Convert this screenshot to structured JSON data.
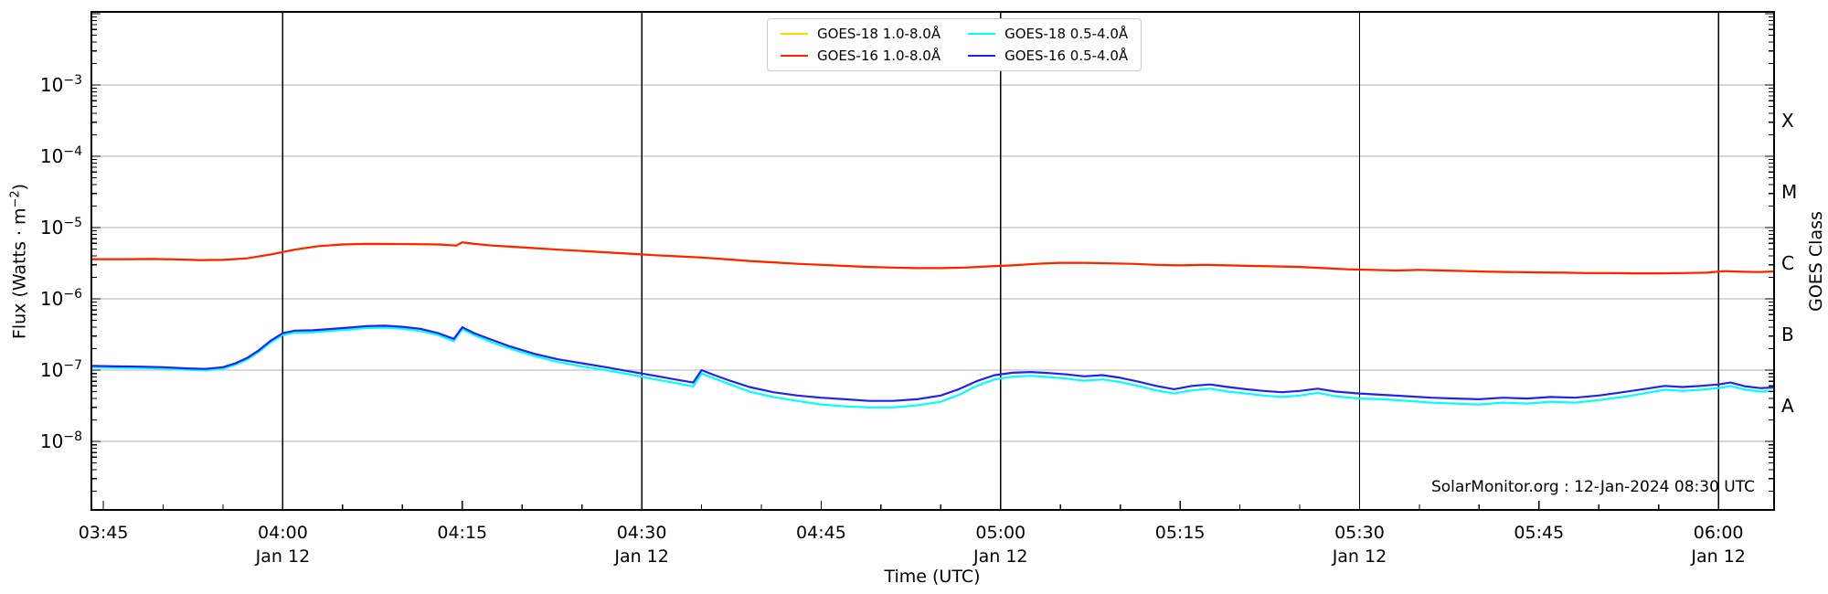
{
  "figure": {
    "background": "#ffffff"
  },
  "axes": {
    "xlabel": "Time (UTC)",
    "ylabel_prefix": "Flux (Watts · m",
    "ylabel_sup": "−2",
    "ylabel_suffix": ")"
  },
  "goes_class": {
    "axis_label": "GOES Class",
    "classes": [
      {
        "label": "X",
        "flux": 0.0003162
      },
      {
        "label": "M",
        "flux": 3.162e-05
      },
      {
        "label": "C",
        "flux": 3.162e-06
      },
      {
        "label": "B",
        "flux": 3.162e-07
      },
      {
        "label": "A",
        "flux": 3.162e-08
      }
    ]
  },
  "watermark": "SolarMonitor.org : 12-Jan-2024 08:30 UTC",
  "chart_data": {
    "type": "line",
    "title": "",
    "xlabel": "Time (UTC)",
    "ylabel": "Flux (Watts · m^-2)",
    "x_unit": "minutes_after_00:00_UTC_12-Jan-2024",
    "xlim": [
      224,
      364.65
    ],
    "ylim": [
      1.094e-09,
      0.010609
    ],
    "yscale": "log",
    "grid_on": true,
    "grid_color": "#b0b0b0",
    "time_grid_color": "#000000",
    "legend_position": "upper center",
    "y_tick_exponents": [
      -3,
      -4,
      -5,
      -6,
      -7,
      -8
    ],
    "x_ticks": [
      {
        "m": 225,
        "label": "03:45"
      },
      {
        "m": 240,
        "label": "04:00",
        "sub": "Jan 12",
        "grid": true
      },
      {
        "m": 255,
        "label": "04:15"
      },
      {
        "m": 270,
        "label": "04:30",
        "sub": "Jan 12",
        "grid": true
      },
      {
        "m": 285,
        "label": "04:45"
      },
      {
        "m": 300,
        "label": "05:00",
        "sub": "Jan 12",
        "grid": true
      },
      {
        "m": 315,
        "label": "05:15"
      },
      {
        "m": 330,
        "label": "05:30",
        "sub": "Jan 12",
        "grid": true
      },
      {
        "m": 345,
        "label": "05:45"
      },
      {
        "m": 360,
        "label": "06:00",
        "sub": "Jan 12",
        "grid": true
      }
    ],
    "long_x": [
      224,
      227,
      229,
      231,
      233,
      235,
      237,
      239,
      241,
      243,
      245,
      247,
      249,
      251,
      253,
      254.5,
      255,
      256,
      257.5,
      259,
      261,
      263,
      265,
      267,
      269,
      271,
      273,
      275,
      277,
      279,
      281,
      283,
      285,
      287,
      289,
      291,
      293,
      295,
      297,
      299,
      301,
      303,
      305,
      307,
      309,
      311,
      313,
      315,
      317,
      319,
      321,
      323,
      325,
      327,
      329,
      331,
      333,
      335,
      337,
      339,
      341,
      343,
      345,
      347,
      349,
      351,
      353,
      355,
      357,
      359,
      360.5,
      362,
      363.5,
      364.5
    ],
    "short_x": [
      224,
      226,
      228,
      230,
      232,
      233.5,
      235,
      236,
      237,
      238,
      239,
      240,
      241,
      242.5,
      244,
      245.5,
      247,
      248.5,
      250,
      251.5,
      253,
      254.3,
      255,
      256,
      257.5,
      259,
      261,
      263,
      265,
      267,
      269,
      271,
      273,
      274.3,
      275,
      276,
      277.5,
      279,
      281,
      283,
      285,
      287,
      289,
      291,
      293,
      295,
      296.5,
      298,
      299.5,
      301,
      302.5,
      304,
      305.5,
      307,
      308.5,
      310,
      311.5,
      313,
      314.5,
      316,
      317.5,
      319,
      320.5,
      322,
      323.5,
      325,
      326.5,
      328,
      330,
      332,
      334,
      336,
      338,
      340,
      342,
      344,
      346,
      348,
      350,
      352,
      354,
      355.5,
      357,
      358.5,
      360,
      361,
      362.3,
      363.5,
      364.5
    ],
    "series": [
      {
        "name": "GOES-18 1.0-8.0Å",
        "color": "#ffd200",
        "x_ref": "long_x",
        "values": [
          3.6e-06,
          3.6e-06,
          3.62e-06,
          3.58e-06,
          3.5e-06,
          3.52e-06,
          3.7e-06,
          4.2e-06,
          4.9e-06,
          5.5e-06,
          5.8e-06,
          5.9e-06,
          5.88e-06,
          5.85e-06,
          5.8e-06,
          5.6e-06,
          6.2e-06,
          5.9e-06,
          5.6e-06,
          5.4e-06,
          5.15e-06,
          4.9e-06,
          4.7e-06,
          4.5e-06,
          4.3e-06,
          4.1e-06,
          3.95e-06,
          3.8e-06,
          3.6e-06,
          3.4e-06,
          3.25e-06,
          3.1e-06,
          3e-06,
          2.9e-06,
          2.8e-06,
          2.75e-06,
          2.7e-06,
          2.7e-06,
          2.75e-06,
          2.85e-06,
          2.95e-06,
          3.1e-06,
          3.2e-06,
          3.2e-06,
          3.15e-06,
          3.1e-06,
          3e-06,
          2.95e-06,
          3e-06,
          2.95e-06,
          2.9e-06,
          2.85e-06,
          2.8e-06,
          2.7e-06,
          2.6e-06,
          2.55e-06,
          2.5e-06,
          2.55e-06,
          2.5e-06,
          2.45e-06,
          2.4e-06,
          2.38e-06,
          2.35e-06,
          2.33e-06,
          2.3e-06,
          2.3e-06,
          2.28e-06,
          2.28e-06,
          2.3e-06,
          2.33e-06,
          2.45e-06,
          2.4e-06,
          2.38e-06,
          2.42e-06
        ]
      },
      {
        "name": "GOES-16 1.0-8.0Å",
        "color": "#ff2200",
        "x_ref": "long_x",
        "values": [
          3.6e-06,
          3.6e-06,
          3.62e-06,
          3.58e-06,
          3.5e-06,
          3.52e-06,
          3.7e-06,
          4.2e-06,
          4.9e-06,
          5.5e-06,
          5.8e-06,
          5.9e-06,
          5.88e-06,
          5.85e-06,
          5.8e-06,
          5.6e-06,
          6.2e-06,
          5.9e-06,
          5.6e-06,
          5.4e-06,
          5.15e-06,
          4.9e-06,
          4.7e-06,
          4.5e-06,
          4.3e-06,
          4.1e-06,
          3.95e-06,
          3.8e-06,
          3.6e-06,
          3.4e-06,
          3.25e-06,
          3.1e-06,
          3e-06,
          2.9e-06,
          2.8e-06,
          2.75e-06,
          2.7e-06,
          2.7e-06,
          2.75e-06,
          2.85e-06,
          2.95e-06,
          3.1e-06,
          3.2e-06,
          3.2e-06,
          3.15e-06,
          3.1e-06,
          3e-06,
          2.95e-06,
          3e-06,
          2.95e-06,
          2.9e-06,
          2.85e-06,
          2.8e-06,
          2.7e-06,
          2.6e-06,
          2.55e-06,
          2.5e-06,
          2.55e-06,
          2.5e-06,
          2.45e-06,
          2.4e-06,
          2.38e-06,
          2.35e-06,
          2.33e-06,
          2.3e-06,
          2.3e-06,
          2.28e-06,
          2.28e-06,
          2.3e-06,
          2.33e-06,
          2.45e-06,
          2.4e-06,
          2.38e-06,
          2.42e-06
        ]
      },
      {
        "name": "GOES-18 0.5-4.0Å",
        "color": "#00ffff",
        "x_ref": "short_x",
        "values": [
          1.1e-07,
          1.08e-07,
          1.07e-07,
          1.05e-07,
          1.01e-07,
          9.9e-08,
          1.05e-07,
          1.18e-07,
          1.4e-07,
          1.8e-07,
          2.45e-07,
          3.1e-07,
          3.35e-07,
          3.4e-07,
          3.55e-07,
          3.7e-07,
          3.9e-07,
          3.95e-07,
          3.8e-07,
          3.55e-07,
          3.1e-07,
          2.55e-07,
          3.75e-07,
          3.1e-07,
          2.45e-07,
          2e-07,
          1.58e-07,
          1.3e-07,
          1.13e-07,
          1e-07,
          8.7e-08,
          7.5e-08,
          6.5e-08,
          5.9e-08,
          9e-08,
          7.7e-08,
          6.2e-08,
          5e-08,
          4.2e-08,
          3.7e-08,
          3.3e-08,
          3.1e-08,
          3e-08,
          3e-08,
          3.2e-08,
          3.6e-08,
          4.5e-08,
          6e-08,
          7.4e-08,
          8.1e-08,
          8.3e-08,
          8e-08,
          7.6e-08,
          7.1e-08,
          7.4e-08,
          6.8e-08,
          6e-08,
          5.2e-08,
          4.7e-08,
          5.2e-08,
          5.5e-08,
          5e-08,
          4.7e-08,
          4.4e-08,
          4.2e-08,
          4.4e-08,
          4.8e-08,
          4.3e-08,
          4e-08,
          3.9e-08,
          3.7e-08,
          3.5e-08,
          3.4e-08,
          3.3e-08,
          3.5e-08,
          3.4e-08,
          3.6e-08,
          3.5e-08,
          3.8e-08,
          4.2e-08,
          4.8e-08,
          5.3e-08,
          5.1e-08,
          5.3e-08,
          5.6e-08,
          6e-08,
          5.3e-08,
          5e-08,
          5.1e-08
        ]
      },
      {
        "name": "GOES-16 0.5-4.0Å",
        "color": "#2222ee",
        "x_ref": "short_x",
        "values": [
          1.15e-07,
          1.13e-07,
          1.12e-07,
          1.1e-07,
          1.06e-07,
          1.04e-07,
          1.1e-07,
          1.24e-07,
          1.48e-07,
          1.9e-07,
          2.6e-07,
          3.3e-07,
          3.58e-07,
          3.62e-07,
          3.78e-07,
          3.95e-07,
          4.15e-07,
          4.2e-07,
          4.05e-07,
          3.8e-07,
          3.3e-07,
          2.75e-07,
          4e-07,
          3.3e-07,
          2.65e-07,
          2.15e-07,
          1.7e-07,
          1.42e-07,
          1.25e-07,
          1.1e-07,
          9.6e-08,
          8.4e-08,
          7.3e-08,
          6.7e-08,
          1e-07,
          8.6e-08,
          7e-08,
          5.8e-08,
          4.9e-08,
          4.4e-08,
          4.1e-08,
          3.9e-08,
          3.7e-08,
          3.7e-08,
          3.9e-08,
          4.4e-08,
          5.4e-08,
          7e-08,
          8.5e-08,
          9.2e-08,
          9.4e-08,
          9.1e-08,
          8.7e-08,
          8.2e-08,
          8.5e-08,
          7.8e-08,
          6.9e-08,
          6e-08,
          5.4e-08,
          6e-08,
          6.3e-08,
          5.8e-08,
          5.4e-08,
          5.1e-08,
          4.9e-08,
          5.1e-08,
          5.5e-08,
          5e-08,
          4.7e-08,
          4.5e-08,
          4.3e-08,
          4.1e-08,
          4e-08,
          3.9e-08,
          4.1e-08,
          4e-08,
          4.2e-08,
          4.1e-08,
          4.4e-08,
          4.9e-08,
          5.5e-08,
          6e-08,
          5.8e-08,
          6e-08,
          6.3e-08,
          6.7e-08,
          5.9e-08,
          5.6e-08,
          5.7e-08
        ]
      }
    ]
  }
}
